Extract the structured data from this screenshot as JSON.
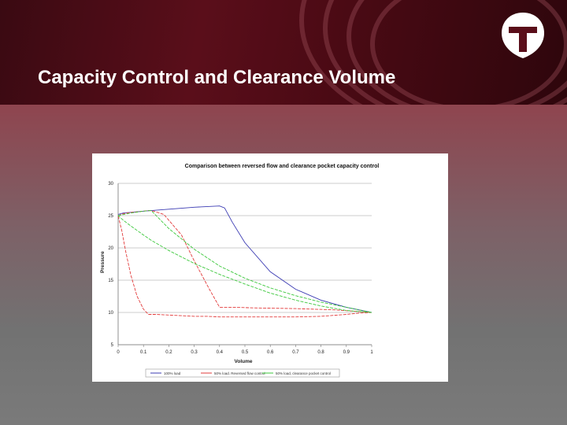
{
  "slide": {
    "title": "Capacity Control and Clearance Volume"
  },
  "colors": {
    "accent": "#a0313e",
    "header": "#5a0e1a",
    "series_full_load": "#3b3bb3",
    "series_reversed": "#e23b3b",
    "series_pocket": "#3cc83c"
  },
  "icons": {
    "logo": "t-shield-logo"
  },
  "chart_data": {
    "type": "line",
    "title": "Comparison between reversed flow and clearance pocket capacity control",
    "xlabel": "Volume",
    "ylabel": "Pressure",
    "xlim": [
      0,
      1
    ],
    "ylim": [
      5,
      30
    ],
    "xticks": [
      "0",
      "0.1",
      "0.2",
      "0.3",
      "0.4",
      "0.5",
      "0.6",
      "0.7",
      "0.8",
      "0.9",
      "1"
    ],
    "yticks": [
      "5",
      "10",
      "15",
      "20",
      "25",
      "30"
    ],
    "grid": true,
    "legend_position": "bottom",
    "series": [
      {
        "name": "100% load",
        "color": "#3b3bb3",
        "x": [
          0,
          0.02,
          0.1,
          0.2,
          0.3,
          0.4,
          0.42,
          0.45,
          0.5,
          0.6,
          0.7,
          0.8,
          0.9,
          1.0
        ],
        "y": [
          25.2,
          25.4,
          25.7,
          26.0,
          26.3,
          26.5,
          26.2,
          24.0,
          20.8,
          16.3,
          13.6,
          11.9,
          10.8,
          10.0
        ]
      },
      {
        "name": "50% load. Reversed flow control",
        "color": "#e23b3b",
        "x": [
          0,
          0.02,
          0.05,
          0.08,
          0.1,
          0.12,
          0.14,
          0.18,
          0.25,
          0.3,
          0.36,
          0.4,
          0.45,
          0.55,
          0.7,
          0.85,
          1.0,
          0.95,
          0.9,
          0.8,
          0.7,
          0.6,
          0.55,
          0.5,
          0.45,
          0.4,
          0.35,
          0.3,
          0.25,
          0.2,
          0.15,
          0.12,
          0.1,
          0.075,
          0.05,
          0.03,
          0.015,
          0
        ],
        "y": [
          25.0,
          25.3,
          25.5,
          25.6,
          25.7,
          25.8,
          25.7,
          25.2,
          22.0,
          18.0,
          13.6,
          10.8,
          10.8,
          10.7,
          10.6,
          10.4,
          10.0,
          9.9,
          9.7,
          9.4,
          9.3,
          9.3,
          9.3,
          9.3,
          9.3,
          9.3,
          9.4,
          9.4,
          9.5,
          9.6,
          9.7,
          9.7,
          10.5,
          12.5,
          15.8,
          19.4,
          22.6,
          25.0
        ]
      },
      {
        "name": "50% load, clearance pocket control",
        "color": "#3cc83c",
        "x": [
          0,
          0.05,
          0.1,
          0.13,
          0.2,
          0.3,
          0.4,
          0.5,
          0.6,
          0.7,
          0.8,
          0.9,
          1.0,
          0.9,
          0.8,
          0.7,
          0.6,
          0.5,
          0.4,
          0.3,
          0.2,
          0.13,
          0.1,
          0.05,
          0.02,
          0
        ],
        "y": [
          25.0,
          25.4,
          25.7,
          25.8,
          23.0,
          19.8,
          17.2,
          15.3,
          13.8,
          12.6,
          11.6,
          10.8,
          10.0,
          10.3,
          11.0,
          11.9,
          13.0,
          14.4,
          15.9,
          17.6,
          19.6,
          21.2,
          22.0,
          23.4,
          24.3,
          25.0
        ]
      }
    ]
  }
}
